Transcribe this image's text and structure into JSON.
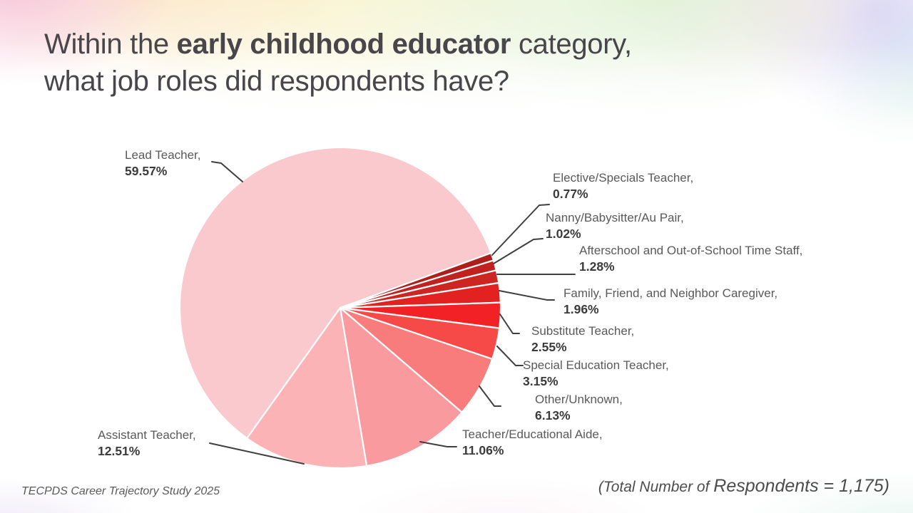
{
  "slide": {
    "title": {
      "prefix": "Within the ",
      "bold": "early childhood educator",
      "suffix": " category,",
      "line2": "what job roles did respondents have?"
    },
    "footer_source": "TECPDS Career Trajectory Study 2025",
    "footer_total_prefix": "(Total Number of ",
    "footer_total_emphasis": "Respondents = 1,175)"
  },
  "chart_data": {
    "type": "pie",
    "title": "Job roles within the early childhood educator category",
    "unit": "%",
    "start_angle_deg": 215.55,
    "direction": "clockwise",
    "legend_position": "outside-callout-labels",
    "total_respondents": "1,175",
    "slices": [
      {
        "label": "Lead Teacher,",
        "pct": "59.57%",
        "value": 59.57,
        "color": "#F9C9CE"
      },
      {
        "label": "Elective/Specials Teacher,",
        "pct": "0.77%",
        "value": 0.77,
        "color": "#B01E1C"
      },
      {
        "label": "Nanny/Babysitter/Au Pair,",
        "pct": "1.02%",
        "value": 1.02,
        "color": "#C12220"
      },
      {
        "label": "Afterschool and Out-of-School Time Staff,",
        "pct": "1.28%",
        "value": 1.28,
        "color": "#CD2522"
      },
      {
        "label": "Family, Friend, and Neighbor Caregiver,",
        "pct": "1.96%",
        "value": 1.96,
        "color": "#E12220"
      },
      {
        "label": "Substitute Teacher,",
        "pct": "2.55%",
        "value": 2.55,
        "color": "#F12125"
      },
      {
        "label": "Special Education Teacher,",
        "pct": "3.15%",
        "value": 3.15,
        "color": "#F54A47"
      },
      {
        "label": "Other/Unknown,",
        "pct": "6.13%",
        "value": 6.13,
        "color": "#F77C7B"
      },
      {
        "label": "Teacher/Educational Aide,",
        "pct": "11.06%",
        "value": 11.06,
        "color": "#F99B9E"
      },
      {
        "label": "Assistant Teacher,",
        "pct": "12.51%",
        "value": 12.51,
        "color": "#FBB3B6"
      }
    ],
    "leader_line_color": "#3F3F3F"
  }
}
